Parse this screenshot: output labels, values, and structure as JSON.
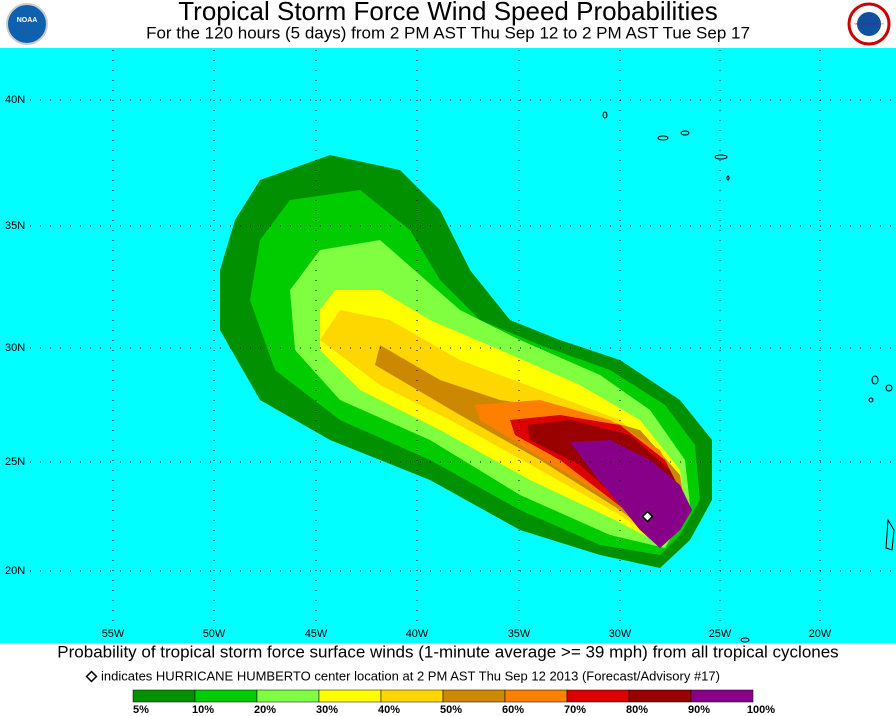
{
  "header": {
    "title": "Tropical Storm Force Wind Speed Probabilities",
    "subtitle": "For the 120 hours (5 days) from 2 PM AST Thu Sep 12 to 2 PM AST Tue Sep 17",
    "logo_left": "NOAA",
    "logo_right": "NATIONAL WEATHER SERVICE"
  },
  "map": {
    "lat_labels": [
      "40N",
      "35N",
      "30N",
      "25N",
      "20N"
    ],
    "lon_labels": [
      "55W",
      "50W",
      "45W",
      "40W",
      "35W",
      "30W",
      "25W",
      "20W"
    ]
  },
  "caption": {
    "text": "Probability of tropical storm force surface winds (1-minute average >= 39 mph) from all tropical cyclones",
    "note": "indicates HURRICANE HUMBERTO center location at 2 PM AST Thu Sep 12 2013 (Forecast/Advisory #17)"
  },
  "legend": {
    "labels": [
      "5%",
      "10%",
      "20%",
      "30%",
      "40%",
      "50%",
      "60%",
      "70%",
      "80%",
      "90%",
      "100%"
    ],
    "colors": [
      "#009000",
      "#00cc00",
      "#80ff40",
      "#ffff00",
      "#ffd700",
      "#cc8800",
      "#ff8000",
      "#dd0000",
      "#990000",
      "#880088"
    ]
  }
}
